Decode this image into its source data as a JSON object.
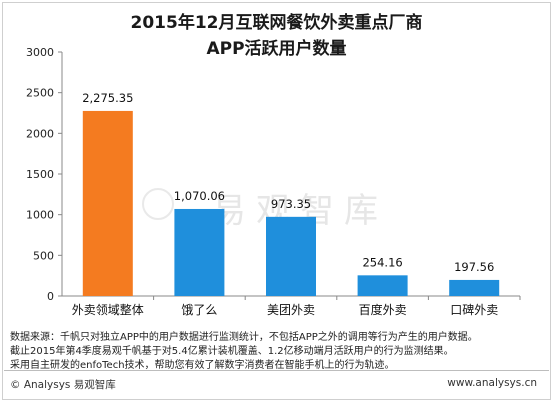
{
  "header": {
    "title_line1": "2015年12月互联网餐饮外卖重点厂商",
    "title_line2": "APP活跃用户数量"
  },
  "chart_data": {
    "type": "bar",
    "title": "2015年12月互联网餐饮外卖重点厂商 APP活跃用户数量",
    "categories": [
      "外卖领域整体",
      "饿了么",
      "美团外卖",
      "百度外卖",
      "口碑外卖"
    ],
    "values": [
      2275.35,
      1070.06,
      973.35,
      254.16,
      197.56
    ],
    "value_labels": [
      "2,275.35",
      "1,070.06",
      "973.35",
      "254.16",
      "197.56"
    ],
    "colors": [
      "#f47b20",
      "#1f8fdc",
      "#1f8fdc",
      "#1f8fdc",
      "#1f8fdc"
    ],
    "ylim": [
      0,
      3000
    ],
    "yticks": [
      0,
      500,
      1000,
      1500,
      2000,
      2500,
      3000
    ],
    "grid": false,
    "xlabel": "",
    "ylabel": ""
  },
  "notes": [
    "数据来源：千帆只对独立APP中的用户数据进行监测统计，不包括APP之外的调用等行为产生的用户数据。",
    "截止2015年第4季度易观千帆基于对5.4亿累计装机覆盖、1.2亿移动端月活跃用户的行为监测结果。",
    "采用自主研发的enfoTech技术，帮助您有效了解数字消费者在智能手机上的行为轨迹。"
  ],
  "footer": {
    "left": "© Analysys 易观智库",
    "right": "www.analysys.cn"
  },
  "watermark": {
    "text": "易观智库",
    "icon": "analysys-logo-icon"
  }
}
